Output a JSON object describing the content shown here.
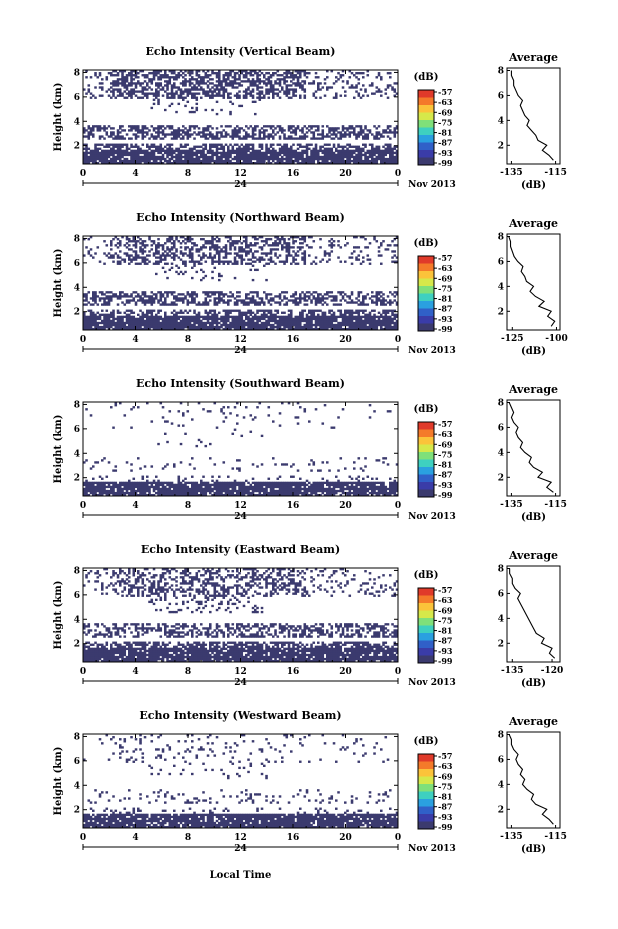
{
  "chart_data": {
    "type": "heatmap",
    "date_label": "Nov 2013",
    "day_label": "24",
    "x_axis_title": "Local Time",
    "x_ticks": [
      "0",
      "4",
      "8",
      "12",
      "16",
      "20",
      "0"
    ],
    "xlim_hours": [
      0,
      24
    ],
    "y_axis_title": "Height (km)",
    "y_ticks": [
      "2",
      "4",
      "6",
      "8"
    ],
    "ylim_km": [
      0.5,
      8.2
    ],
    "colorbar": {
      "unit": "(dB)",
      "ticks": [
        "-57",
        "-63",
        "-69",
        "-75",
        "-81",
        "-87",
        "-93",
        "-99"
      ],
      "colors": [
        "#e03a2a",
        "#f47a2a",
        "#fbc33a",
        "#d6e84a",
        "#7fe07a",
        "#3ed0c0",
        "#2aa0e0",
        "#3060c8",
        "#3a3ca8",
        "#3b3a6e"
      ]
    },
    "echo_color": "#3b3a6e",
    "average_title": "Average",
    "average_ylabel_ticks": [
      "2",
      "4",
      "6",
      "8"
    ],
    "average_unit": "(dB)",
    "panels": [
      {
        "title": "Echo Intensity (Vertical Beam)",
        "avg_xticks": [
          "-135",
          "-115"
        ],
        "avg_xlim": [
          -137,
          -113
        ],
        "avg_profile": {
          "height": [
            0.8,
            1.2,
            1.6,
            2.0,
            2.4,
            2.8,
            3.2,
            3.6,
            4.0,
            4.4,
            4.8,
            5.2,
            5.6,
            6.0,
            6.4,
            6.8,
            7.2,
            7.6,
            8.0
          ],
          "value": [
            -116,
            -118,
            -121,
            -119,
            -123,
            -124,
            -126,
            -128,
            -127,
            -129,
            -130,
            -131,
            -130,
            -132,
            -133,
            -134,
            -134,
            -135,
            -135
          ]
        }
      },
      {
        "title": "Echo Intensity (Northward Beam)",
        "avg_xticks": [
          "-125",
          "-100"
        ],
        "avg_xlim": [
          -128,
          -98
        ],
        "avg_profile": {
          "height": [
            0.8,
            1.2,
            1.6,
            2.0,
            2.4,
            2.8,
            3.2,
            3.6,
            4.0,
            4.4,
            4.8,
            5.2,
            5.6,
            6.0,
            6.4,
            6.8,
            7.2,
            7.6,
            8.0
          ],
          "value": [
            -103,
            -101,
            -105,
            -103,
            -110,
            -107,
            -112,
            -115,
            -113,
            -117,
            -118,
            -120,
            -119,
            -122,
            -124,
            -125,
            -126,
            -126,
            -127
          ]
        }
      },
      {
        "title": "Echo Intensity (Southward Beam)",
        "avg_xticks": [
          "-135",
          "-115"
        ],
        "avg_xlim": [
          -137,
          -113
        ],
        "avg_profile": {
          "height": [
            0.8,
            1.2,
            1.6,
            2.0,
            2.4,
            2.8,
            3.2,
            3.6,
            4.0,
            4.4,
            4.8,
            5.2,
            5.6,
            6.0,
            6.4,
            6.8,
            7.2,
            7.6,
            8.0
          ],
          "value": [
            -116,
            -119,
            -117,
            -123,
            -121,
            -125,
            -127,
            -126,
            -129,
            -131,
            -130,
            -132,
            -133,
            -132,
            -134,
            -135,
            -134,
            -135,
            -136
          ]
        }
      },
      {
        "title": "Echo Intensity (Eastward Beam)",
        "avg_xticks": [
          "-135",
          "-120"
        ],
        "avg_xlim": [
          -137,
          -117
        ],
        "avg_profile": {
          "height": [
            0.8,
            1.2,
            1.6,
            2.0,
            2.4,
            2.8,
            3.2,
            3.6,
            4.0,
            4.4,
            4.8,
            5.2,
            5.6,
            6.0,
            6.4,
            6.8,
            7.2,
            7.6,
            8.0
          ],
          "value": [
            -119,
            -121,
            -120,
            -124,
            -123,
            -126,
            -127,
            -128,
            -129,
            -130,
            -131,
            -132,
            -133,
            -132,
            -134,
            -135,
            -135,
            -136,
            -136
          ]
        }
      },
      {
        "title": "Echo Intensity (Westward Beam)",
        "avg_xticks": [
          "-135",
          "-115"
        ],
        "avg_xlim": [
          -137,
          -113
        ],
        "avg_profile": {
          "height": [
            0.8,
            1.2,
            1.6,
            2.0,
            2.4,
            2.8,
            3.2,
            3.6,
            4.0,
            4.4,
            4.8,
            5.2,
            5.6,
            6.0,
            6.4,
            6.8,
            7.2,
            7.6,
            8.0
          ],
          "value": [
            -116,
            -118,
            -121,
            -119,
            -124,
            -126,
            -125,
            -128,
            -130,
            -129,
            -131,
            -130,
            -132,
            -133,
            -132,
            -134,
            -135,
            -135,
            -136
          ]
        }
      }
    ]
  }
}
